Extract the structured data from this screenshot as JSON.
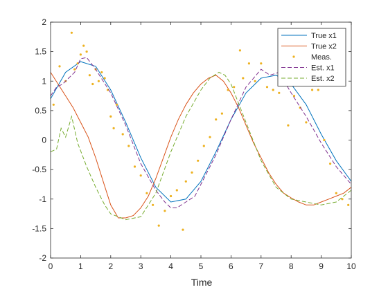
{
  "chart_data": {
    "type": "line",
    "title": "",
    "xlabel": "Time",
    "ylabel": "",
    "xlim": [
      0,
      10
    ],
    "ylim": [
      -2,
      2
    ],
    "xticks": [
      "0",
      "1",
      "2",
      "3",
      "4",
      "5",
      "6",
      "7",
      "8",
      "9",
      "10"
    ],
    "yticks": [
      "-2",
      "-1.5",
      "-1",
      "-0.5",
      "0",
      "0.5",
      "1",
      "1.5",
      "2"
    ],
    "grid": false,
    "legend_position": "top-right",
    "series": [
      {
        "name": "True x1",
        "style": "solid-line",
        "color": "#0072BD",
        "x": [
          0,
          0.5,
          1.0,
          1.5,
          2.0,
          2.5,
          3.0,
          3.5,
          4.0,
          4.5,
          5.0,
          5.5,
          6.0,
          6.5,
          7.0,
          7.5,
          8.0,
          8.5,
          9.0,
          9.5,
          10.0
        ],
        "values": [
          0.7,
          1.15,
          1.33,
          1.25,
          0.85,
          0.3,
          -0.3,
          -0.8,
          -1.05,
          -1.0,
          -0.7,
          -0.2,
          0.35,
          0.8,
          1.05,
          1.1,
          0.95,
          0.6,
          0.1,
          -0.35,
          -0.7
        ]
      },
      {
        "name": "True x2",
        "style": "solid-line",
        "color": "#D95319",
        "x": [
          0,
          0.25,
          0.5,
          0.75,
          1.0,
          1.25,
          1.5,
          1.75,
          2.0,
          2.25,
          2.5,
          2.75,
          3.0,
          3.25,
          3.5,
          3.75,
          4.0,
          4.25,
          4.5,
          4.75,
          5.0,
          5.25,
          5.5,
          5.75,
          6.0,
          6.25,
          6.5,
          6.75,
          7.0,
          7.25,
          7.5,
          7.75,
          8.0,
          8.25,
          8.5,
          8.75,
          9.0,
          9.25,
          9.5,
          9.75,
          10.0
        ],
        "values": [
          1.15,
          0.95,
          0.75,
          0.55,
          0.3,
          0.05,
          -0.3,
          -0.7,
          -1.1,
          -1.32,
          -1.32,
          -1.28,
          -1.15,
          -0.95,
          -0.65,
          -0.3,
          0.05,
          0.35,
          0.6,
          0.8,
          0.95,
          1.05,
          1.1,
          1.0,
          0.8,
          0.55,
          0.25,
          -0.05,
          -0.3,
          -0.55,
          -0.75,
          -0.9,
          -0.98,
          -1.05,
          -1.1,
          -1.1,
          -1.05,
          -1.0,
          -0.95,
          -0.9,
          -0.8
        ]
      },
      {
        "name": "Meas.",
        "style": "dots",
        "color": "#EDB120",
        "x": [
          0.1,
          0.3,
          0.5,
          0.7,
          0.8,
          0.9,
          1.0,
          1.1,
          1.2,
          1.3,
          1.4,
          1.5,
          1.6,
          1.7,
          1.8,
          1.9,
          2.0,
          2.1,
          2.2,
          2.4,
          2.6,
          2.8,
          3.0,
          3.2,
          3.4,
          3.6,
          3.8,
          4.0,
          4.2,
          4.4,
          4.5,
          4.7,
          4.9,
          5.1,
          5.3,
          5.5,
          5.7,
          5.9,
          6.1,
          6.3,
          6.4,
          6.6,
          6.8,
          7.0,
          7.2,
          7.4,
          7.6,
          7.9,
          8.1,
          8.3,
          8.5,
          8.7,
          8.9,
          9.1,
          9.3,
          9.5,
          9.7,
          9.9
        ],
        "values": [
          0.6,
          1.25,
          1.0,
          1.82,
          1.2,
          1.3,
          1.45,
          1.6,
          1.5,
          1.1,
          0.95,
          1.2,
          1.0,
          1.15,
          1.05,
          0.85,
          0.4,
          0.2,
          0.6,
          0.1,
          -0.1,
          -0.45,
          -0.6,
          -0.9,
          -1.1,
          -1.45,
          -1.2,
          -0.95,
          -0.85,
          -1.52,
          -0.7,
          -0.55,
          -0.35,
          -0.1,
          0.05,
          0.35,
          0.45,
          0.85,
          0.9,
          1.52,
          1.05,
          1.3,
          1.0,
          1.3,
          0.9,
          0.85,
          0.8,
          0.25,
          0.75,
          0.55,
          0.3,
          0.85,
          0.85,
          0.0,
          -0.4,
          -0.9,
          -1.0,
          -1.1
        ]
      },
      {
        "name": "Est. x1",
        "style": "dashed-line",
        "color": "#7E2F8E",
        "x": [
          0,
          0.2,
          0.4,
          0.6,
          0.8,
          1.0,
          1.2,
          1.5,
          2.0,
          2.5,
          3.0,
          3.5,
          3.8,
          4.0,
          4.2,
          4.5,
          4.8,
          5.0,
          5.5,
          6.0,
          6.5,
          7.0,
          7.3,
          7.6,
          8.0,
          8.5,
          9.0,
          9.5,
          10.0
        ],
        "values": [
          0.75,
          0.9,
          0.95,
          1.05,
          1.15,
          1.38,
          1.4,
          1.2,
          0.8,
          0.25,
          -0.4,
          -0.85,
          -1.05,
          -1.15,
          -1.15,
          -1.05,
          -0.95,
          -0.75,
          -0.25,
          0.35,
          0.9,
          1.2,
          1.1,
          1.15,
          0.8,
          0.4,
          -0.05,
          -0.45,
          -0.75
        ]
      },
      {
        "name": "Est. x2",
        "style": "dashed-line",
        "color": "#77AC30",
        "x": [
          0,
          0.2,
          0.35,
          0.5,
          0.7,
          0.9,
          1.2,
          1.5,
          1.8,
          2.0,
          2.5,
          3.0,
          3.5,
          4.0,
          4.5,
          5.0,
          5.3,
          5.6,
          5.8,
          6.0,
          6.5,
          7.0,
          7.5,
          8.0,
          8.5,
          9.0,
          9.5,
          10.0
        ],
        "values": [
          -0.2,
          -0.15,
          0.2,
          0.05,
          0.4,
          -0.05,
          -0.45,
          -0.8,
          -1.1,
          -1.25,
          -1.35,
          -1.3,
          -0.9,
          -0.2,
          0.4,
          0.85,
          1.05,
          1.15,
          1.1,
          0.95,
          0.3,
          -0.35,
          -0.8,
          -1.0,
          -1.05,
          -1.1,
          -1.05,
          -0.85
        ]
      }
    ]
  }
}
